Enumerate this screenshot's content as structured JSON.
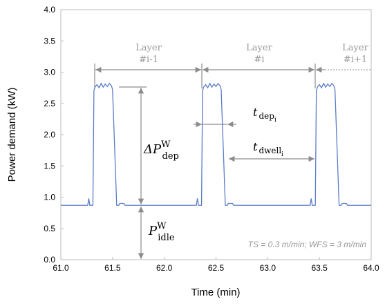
{
  "chart_data": {
    "type": "line",
    "x_label": "Time (min)",
    "y_label": "Power demand (kW)",
    "xlim": [
      61.0,
      64.0
    ],
    "xticks": [
      {
        "value": 61.0,
        "label": "61.0"
      },
      {
        "value": 61.5,
        "label": "61.5"
      },
      {
        "value": 62.0,
        "label": "62.0"
      },
      {
        "value": 62.5,
        "label": "62.5"
      },
      {
        "value": 63.0,
        "label": "63.0"
      },
      {
        "value": 63.5,
        "label": "63.5"
      },
      {
        "value": 64.0,
        "label": "64.0"
      }
    ],
    "ylim": [
      0.0,
      4.0
    ],
    "yticks": [
      {
        "value": 0.0,
        "label": "0.0"
      },
      {
        "value": 0.5,
        "label": "0.5"
      },
      {
        "value": 1.0,
        "label": "1.0"
      },
      {
        "value": 1.5,
        "label": "1.5"
      },
      {
        "value": 2.0,
        "label": "2.0"
      },
      {
        "value": 2.5,
        "label": "2.5"
      },
      {
        "value": 3.0,
        "label": "3.0"
      },
      {
        "value": 3.5,
        "label": "3.5"
      },
      {
        "value": 4.0,
        "label": "4.0"
      }
    ],
    "grid": false,
    "color": "#5b7bc6",
    "x": [
      61.0,
      61.26,
      61.27,
      61.28,
      61.31,
      61.32,
      61.33,
      61.35,
      61.37,
      61.39,
      61.41,
      61.43,
      61.45,
      61.47,
      61.49,
      61.5,
      61.52,
      61.54,
      61.56,
      61.57,
      61.61,
      61.62,
      62.31,
      62.32,
      62.33,
      62.36,
      62.37,
      62.38,
      62.4,
      62.42,
      62.44,
      62.46,
      62.48,
      62.5,
      62.52,
      62.54,
      62.55,
      62.57,
      62.59,
      62.61,
      62.62,
      62.66,
      62.67,
      63.41,
      63.42,
      63.43,
      63.46,
      63.47,
      63.48,
      63.5,
      63.52,
      63.54,
      63.56,
      63.58,
      63.6,
      63.62,
      63.64,
      63.65,
      63.67,
      63.69,
      63.71,
      63.72,
      63.76,
      63.77,
      64.0
    ],
    "values": [
      0.87,
      0.87,
      0.98,
      0.87,
      0.87,
      2.7,
      2.76,
      2.8,
      2.75,
      2.82,
      2.76,
      2.81,
      2.77,
      2.82,
      2.78,
      2.72,
      1.8,
      0.87,
      0.87,
      0.9,
      0.9,
      0.87,
      0.87,
      0.98,
      0.87,
      0.87,
      2.7,
      2.76,
      2.8,
      2.75,
      2.82,
      2.76,
      2.81,
      2.77,
      2.82,
      2.78,
      2.72,
      1.8,
      0.87,
      0.87,
      0.9,
      0.9,
      0.87,
      0.87,
      0.98,
      0.87,
      0.87,
      2.7,
      2.76,
      2.8,
      2.75,
      2.82,
      2.76,
      2.81,
      2.77,
      2.82,
      2.78,
      2.72,
      1.8,
      0.87,
      0.87,
      0.9,
      0.9,
      0.87,
      0.87
    ],
    "layers": [
      {
        "line1": "Layer",
        "line2": "#i-1"
      },
      {
        "line1": "Layer",
        "line2": "#i"
      },
      {
        "line1": "Layer",
        "line2": "#i+1"
      }
    ],
    "labels": {
      "delta_p": {
        "main": "ΔP",
        "sup": "W",
        "sub": "dep"
      },
      "p_idle": {
        "main": "P",
        "sup": "W",
        "sub": "idle"
      },
      "t_dep": {
        "main": "t",
        "sub": "dep",
        "subsub": "i"
      },
      "t_dwell": {
        "main": "t",
        "sub": "dwell",
        "subsub": "i"
      }
    },
    "note": "TS = 0.3 m/min; WFS = 3 m/min"
  }
}
